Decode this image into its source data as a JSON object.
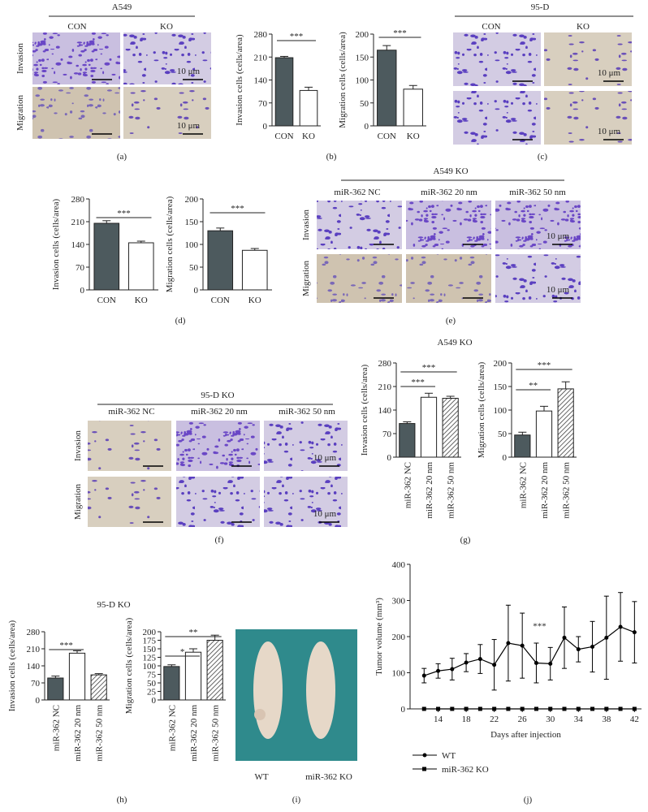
{
  "chart_data": [
    {
      "type": "bar",
      "ylabel": "Invasion cells (cells/area)",
      "categories": [
        "CON",
        "KO"
      ],
      "values": [
        208,
        108
      ],
      "errors": [
        4,
        10
      ],
      "colors": [
        "#4d5a5e",
        "#ffffff"
      ],
      "hatched": [
        false,
        false
      ],
      "ylim": [
        0,
        280
      ],
      "yticks": [
        0,
        70,
        140,
        210,
        280
      ],
      "annotations": [
        "***"
      ]
    },
    {
      "type": "bar",
      "ylabel": "Migration cells (cells/area)",
      "categories": [
        "CON",
        "KO"
      ],
      "values": [
        165,
        80
      ],
      "errors": [
        10,
        8
      ],
      "colors": [
        "#4d5a5e",
        "#ffffff"
      ],
      "hatched": [
        false,
        false
      ],
      "ylim": [
        0,
        200
      ],
      "yticks": [
        0,
        50,
        100,
        150,
        200
      ],
      "annotations": [
        "***"
      ]
    },
    {
      "type": "bar",
      "ylabel": "Invasion cells (cells/area)",
      "categories": [
        "CON",
        "KO"
      ],
      "values": [
        205,
        145
      ],
      "errors": [
        8,
        5
      ],
      "colors": [
        "#4d5a5e",
        "#ffffff"
      ],
      "hatched": [
        false,
        false
      ],
      "ylim": [
        0,
        280
      ],
      "yticks": [
        0,
        70,
        140,
        210,
        280
      ],
      "annotations": [
        "***"
      ]
    },
    {
      "type": "bar",
      "ylabel": "Migration cells (cells/area)",
      "categories": [
        "CON",
        "KO"
      ],
      "values": [
        130,
        87
      ],
      "errors": [
        6,
        4
      ],
      "colors": [
        "#4d5a5e",
        "#ffffff"
      ],
      "hatched": [
        false,
        false
      ],
      "ylim": [
        0,
        200
      ],
      "yticks": [
        0,
        50,
        100,
        150,
        200
      ],
      "annotations": [
        "***"
      ]
    },
    {
      "type": "bar",
      "title": "A549 KO",
      "ylabel": "Invasion cells (cells/area)",
      "categories": [
        "miR-362 NC",
        "miR-362 20 nm",
        "miR-362 50 nm"
      ],
      "values": [
        100,
        178,
        175
      ],
      "errors": [
        5,
        12,
        6
      ],
      "colors": [
        "#4d5a5e",
        "#ffffff",
        "#ffffff"
      ],
      "hatched": [
        false,
        false,
        true
      ],
      "ylim": [
        0,
        280
      ],
      "yticks": [
        0,
        70,
        140,
        210,
        280
      ],
      "annotations": [
        "***",
        "***"
      ]
    },
    {
      "type": "bar",
      "ylabel": "Migration cells (cells/area)",
      "categories": [
        "miR-362 NC",
        "miR-362 20 nm",
        "miR-362 50 nm"
      ],
      "values": [
        47,
        98,
        145
      ],
      "errors": [
        6,
        10,
        15
      ],
      "colors": [
        "#4d5a5e",
        "#ffffff",
        "#ffffff"
      ],
      "hatched": [
        false,
        false,
        true
      ],
      "ylim": [
        0,
        200
      ],
      "yticks": [
        0,
        50,
        100,
        150,
        200
      ],
      "annotations": [
        "**",
        "***"
      ]
    },
    {
      "type": "bar",
      "title": "95-D KO",
      "ylabel": "Invasion cells (cells/area)",
      "categories": [
        "miR-362 NC",
        "miR-362 20 nm",
        "miR-362 50 nm"
      ],
      "values": [
        90,
        192,
        103
      ],
      "errors": [
        8,
        10,
        5
      ],
      "colors": [
        "#4d5a5e",
        "#ffffff",
        "#ffffff"
      ],
      "hatched": [
        false,
        false,
        true
      ],
      "ylim": [
        0,
        280
      ],
      "yticks": [
        0,
        70,
        140,
        210,
        280
      ],
      "annotations": [
        "***"
      ]
    },
    {
      "type": "bar",
      "ylabel": "Migration cells (cells/area)",
      "categories": [
        "miR-362 NC",
        "miR-362 20 nm",
        "miR-362 50 nm"
      ],
      "values": [
        98,
        140,
        175
      ],
      "errors": [
        5,
        10,
        15
      ],
      "colors": [
        "#4d5a5e",
        "#ffffff",
        "#ffffff"
      ],
      "hatched": [
        false,
        false,
        true
      ],
      "ylim": [
        0,
        200
      ],
      "yticks": [
        0,
        25,
        50,
        75,
        100,
        125,
        150,
        175,
        200
      ],
      "annotations": [
        "*",
        "**"
      ]
    },
    {
      "type": "line",
      "ylabel": "Tumor volume (mm³)",
      "xlabel": "Days after injection",
      "x": [
        12,
        14,
        16,
        18,
        20,
        22,
        24,
        26,
        28,
        30,
        32,
        34,
        36,
        38,
        40,
        42
      ],
      "series": [
        {
          "name": "WT",
          "color": "#000000",
          "marker": "circle",
          "values": [
            92,
            105,
            110,
            128,
            138,
            122,
            182,
            175,
            127,
            125,
            197,
            165,
            172,
            197,
            227,
            212
          ],
          "errors": [
            20,
            20,
            30,
            25,
            40,
            70,
            105,
            90,
            55,
            45,
            85,
            35,
            70,
            115,
            95,
            85
          ]
        },
        {
          "name": "miR-362 KO",
          "color": "#000000",
          "marker": "square",
          "values": [
            0,
            0,
            0,
            0,
            0,
            0,
            0,
            0,
            0,
            0,
            0,
            0,
            0,
            0,
            0,
            0
          ]
        }
      ],
      "xlim": [
        10,
        43
      ],
      "xticks": [
        14,
        18,
        22,
        26,
        30,
        34,
        38,
        42
      ],
      "ylim": [
        0,
        400
      ],
      "yticks": [
        0,
        100,
        200,
        300,
        400
      ],
      "annotations": [
        "***"
      ]
    }
  ],
  "image_panels": {
    "a": {
      "header": "A549",
      "columns": [
        "CON",
        "KO"
      ],
      "rows": [
        "Invasion",
        "Migration"
      ],
      "scale_labels": [
        "10 μm",
        "10 μm"
      ]
    },
    "c": {
      "header": "95-D",
      "columns": [
        "CON",
        "KO"
      ],
      "scale_labels": [
        "10 μm",
        "10 μm"
      ]
    },
    "e": {
      "header": "A549 KO",
      "columns": [
        "miR-362 NC",
        "miR-362 20 nm",
        "miR-362 50 nm"
      ],
      "rows": [
        "Invasion",
        "Migration"
      ],
      "scale_labels": [
        "10 μm",
        "10 μm"
      ]
    },
    "f": {
      "header": "95-D KO",
      "columns": [
        "miR-362 NC",
        "miR-362 20 nm",
        "miR-362 50 nm"
      ],
      "rows": [
        "Invasion",
        "Migration"
      ],
      "scale_labels": [
        "10 μm",
        "10 μm"
      ]
    },
    "i": {
      "labels": [
        "WT",
        "miR-362 KO"
      ]
    }
  },
  "panel_labels": [
    "(a)",
    "(b)",
    "(c)",
    "(d)",
    "(e)",
    "(f)",
    "(g)",
    "(h)",
    "(i)",
    "(j)"
  ]
}
